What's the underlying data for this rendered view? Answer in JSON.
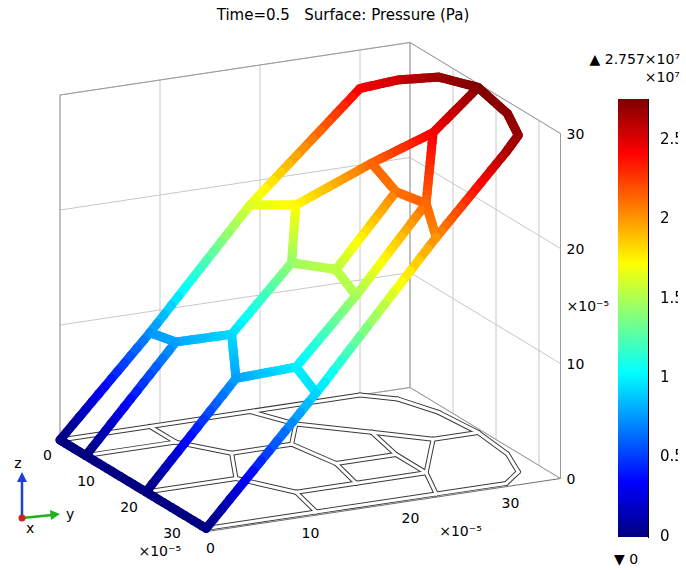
{
  "chart_data": {
    "type": "surface3d",
    "title": "Time=0.5   Surface: Pressure (Pa)",
    "axis_labels": {
      "x": "x",
      "y": "y",
      "z": "z"
    },
    "xlim": [
      0,
      35
    ],
    "xticks": [
      0,
      10,
      20,
      30
    ],
    "ylim": [
      0,
      35
    ],
    "yticks": [
      0,
      10,
      20,
      30
    ],
    "zlim": [
      0,
      30
    ],
    "zticks": [
      0,
      10,
      20,
      30
    ],
    "tick_multiplier": {
      "x": "×10⁻⁵",
      "y": "×10⁻⁵",
      "z": "×10⁻⁵"
    },
    "grid": true,
    "nodes": [
      [
        0,
        0,
        0
      ],
      [
        6,
        0,
        0
      ],
      [
        20,
        0,
        0
      ],
      [
        34,
        0,
        0
      ],
      [
        0,
        9,
        7500000
      ],
      [
        6,
        9,
        8000000
      ],
      [
        12,
        12,
        9500000
      ],
      [
        20,
        9,
        8000000
      ],
      [
        27,
        12,
        10000000
      ],
      [
        34,
        11,
        9500000
      ],
      [
        12,
        18,
        14500000
      ],
      [
        20,
        19,
        15500000
      ],
      [
        27,
        18,
        15000000
      ],
      [
        6,
        21,
        17500000
      ],
      [
        0,
        19,
        16500000
      ],
      [
        20,
        25,
        21000000
      ],
      [
        12,
        26,
        21500000
      ],
      [
        27,
        25,
        21500000
      ],
      [
        34,
        23,
        20500000
      ],
      [
        17,
        30,
        24500000
      ],
      [
        0,
        30,
        24500000
      ],
      [
        34,
        30,
        26500000
      ],
      [
        3,
        32.5,
        25500000
      ],
      [
        9,
        34,
        26800000
      ],
      [
        17,
        34.5,
        27570000
      ],
      [
        25,
        34,
        27200000
      ],
      [
        31,
        32.5,
        26900000
      ]
    ],
    "edges": [
      [
        0,
        1
      ],
      [
        1,
        2
      ],
      [
        2,
        3
      ],
      [
        0,
        4
      ],
      [
        4,
        14
      ],
      [
        14,
        20
      ],
      [
        3,
        9
      ],
      [
        9,
        18
      ],
      [
        18,
        21
      ],
      [
        1,
        5
      ],
      [
        5,
        4
      ],
      [
        5,
        6
      ],
      [
        2,
        7
      ],
      [
        7,
        6
      ],
      [
        7,
        8
      ],
      [
        8,
        9
      ],
      [
        6,
        10
      ],
      [
        10,
        11
      ],
      [
        8,
        12
      ],
      [
        12,
        11
      ],
      [
        10,
        13
      ],
      [
        13,
        14
      ],
      [
        11,
        15
      ],
      [
        15,
        16
      ],
      [
        15,
        17
      ],
      [
        17,
        18
      ],
      [
        12,
        17
      ],
      [
        16,
        13
      ],
      [
        16,
        19
      ],
      [
        17,
        19
      ],
      [
        19,
        24
      ],
      [
        20,
        22
      ],
      [
        22,
        23
      ],
      [
        23,
        24
      ],
      [
        24,
        25
      ],
      [
        25,
        26
      ],
      [
        26,
        21
      ]
    ],
    "colorbar": {
      "min": {
        "value": 0,
        "label": "▼ 0"
      },
      "max": {
        "value": 27570000,
        "label": "▲ 2.757×10⁷"
      },
      "multiplier": "×10⁷",
      "ticks": [
        0,
        {
          "value": 5000000,
          "label": "0.5"
        },
        {
          "value": 10000000,
          "label": "1"
        },
        {
          "value": 15000000,
          "label": "1.5"
        },
        {
          "value": 20000000,
          "label": "2"
        },
        {
          "value": 25000000,
          "label": "2.5"
        }
      ]
    }
  }
}
